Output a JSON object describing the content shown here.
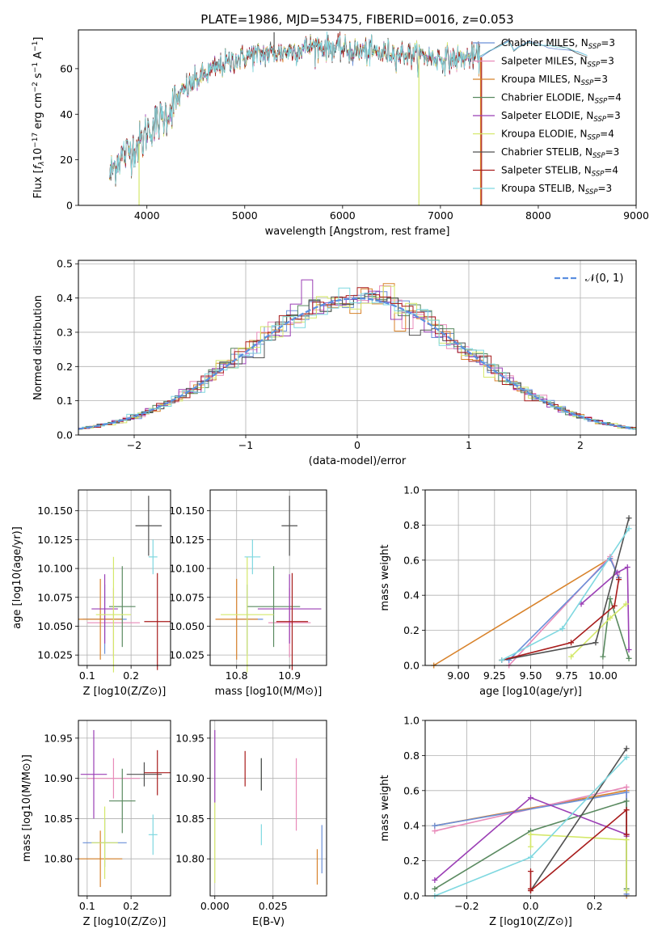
{
  "colors": {
    "Chabrier MILES": "#6a8fd8",
    "Salpeter MILES": "#e88ab9",
    "Kroupa MILES": "#d8822a",
    "Chabrier ELODIE": "#5a8a60",
    "Salpeter ELODIE": "#9b3fb5",
    "Kroupa ELODIE": "#d4e86a",
    "Chabrier STELIB": "#505050",
    "Salpeter STELIB": "#a81c1c",
    "Kroupa STELIB": "#7fd8e0",
    "normal": "#5b8fe0",
    "grid": "#b0b0b0"
  },
  "chart_data": [
    {
      "id": "spectrum",
      "type": "line",
      "title": "PLATE=1986, MJD=53475, FIBERID=0016, z=0.053",
      "xlabel": "wavelength [Angstrom, rest frame]",
      "ylabel": "Flux [f_λ10^-17 erg cm^-2 s^-1 A^-1]",
      "xlim": [
        3300,
        9000
      ],
      "ylim": [
        0,
        77
      ],
      "xticks": [
        4000,
        5000,
        6000,
        7000,
        8000,
        9000
      ],
      "yticks": [
        0,
        20,
        40,
        60
      ],
      "grid": false,
      "legend_position": "top-right",
      "series": [
        {
          "name": "Chabrier MILES",
          "ssp": "3"
        },
        {
          "name": "Salpeter MILES",
          "ssp": "3"
        },
        {
          "name": "Kroupa MILES",
          "ssp": "3"
        },
        {
          "name": "Chabrier ELODIE",
          "ssp": "4"
        },
        {
          "name": "Salpeter ELODIE",
          "ssp": "3"
        },
        {
          "name": "Kroupa ELODIE",
          "ssp": "4"
        },
        {
          "name": "Chabrier STELIB",
          "ssp": "3"
        },
        {
          "name": "Salpeter STELIB",
          "ssp": "4"
        },
        {
          "name": "Kroupa STELIB",
          "ssp": "3"
        }
      ],
      "continuum": {
        "x": [
          3620,
          3700,
          3850,
          3950,
          4000,
          4100,
          4200,
          4300,
          4400,
          4500,
          4700,
          4900,
          5100,
          5300,
          5500,
          5700,
          5900,
          6100,
          6300,
          6500,
          6700,
          6900,
          7100,
          7300,
          7400
        ],
        "y": [
          13,
          20,
          25,
          28,
          33,
          36,
          40,
          46,
          51,
          55,
          60,
          64,
          66,
          67,
          68,
          70,
          69,
          68,
          67,
          67,
          66,
          65,
          64,
          65,
          65
        ]
      },
      "model_tail": {
        "x": [
          7400,
          7500,
          7600,
          7700,
          7750,
          7800,
          7900,
          8000,
          8100,
          8200,
          8300,
          8400,
          8500
        ],
        "y": [
          65,
          68,
          70,
          72,
          68,
          70,
          72,
          71,
          70,
          69,
          69,
          67,
          66
        ]
      },
      "spikes": [
        {
          "series": "Kroupa ELODIE",
          "x": 3920,
          "y": 0
        },
        {
          "series": "Chabrier STELIB",
          "x": 5300,
          "y": 76
        },
        {
          "series": "Kroupa ELODIE",
          "x": 6780,
          "y": 0
        },
        {
          "series": "Salpeter STELIB",
          "x": 7420,
          "y": 0
        },
        {
          "series": "Kroupa MILES",
          "x": 7410,
          "y": 0
        }
      ]
    },
    {
      "id": "residuals",
      "type": "histogram",
      "xlabel": "(data-model)/error",
      "ylabel": "Normed distribution",
      "xlim": [
        -2.5,
        2.5
      ],
      "ylim": [
        0,
        0.51
      ],
      "xticks": [
        -2,
        -1,
        0,
        1,
        2
      ],
      "yticks": [
        0.0,
        0.1,
        0.2,
        0.3,
        0.4,
        0.5
      ],
      "grid": true,
      "legend_position": "top-right",
      "legend": "𝒩(0, 1)",
      "bin_width": 0.1
    },
    {
      "id": "age-vs-Z",
      "type": "scatter",
      "xlabel": "Z [log10(Z/Z⊙)]",
      "ylabel": "age  [log10(age/yr)]",
      "xlim": [
        0.08,
        0.29
      ],
      "ylim": [
        10.016,
        10.168
      ],
      "xticks": [
        0.1,
        0.2
      ],
      "yticks": [
        10.025,
        10.05,
        10.075,
        10.1,
        10.125,
        10.15
      ],
      "grid": true,
      "points": [
        {
          "series": "Chabrier MILES",
          "x": 0.14,
          "y": 10.056,
          "xerr": 0.05,
          "yerr": 0.03
        },
        {
          "series": "Salpeter MILES",
          "x": 0.16,
          "y": 10.053,
          "xerr": 0.06,
          "yerr": 0.03
        },
        {
          "series": "Kroupa MILES",
          "x": 0.13,
          "y": 10.056,
          "xerr": 0.05,
          "yerr": 0.035
        },
        {
          "series": "Chabrier ELODIE",
          "x": 0.18,
          "y": 10.067,
          "xerr": 0.03,
          "yerr": 0.035
        },
        {
          "series": "Salpeter ELODIE",
          "x": 0.14,
          "y": 10.065,
          "xerr": 0.03,
          "yerr": 0.03
        },
        {
          "series": "Kroupa ELODIE",
          "x": 0.16,
          "y": 10.06,
          "xerr": 0.04,
          "yerr": 0.05
        },
        {
          "series": "Chabrier STELIB",
          "x": 0.24,
          "y": 10.137,
          "xerr": 0.03,
          "yerr": 0.026
        },
        {
          "series": "Salpeter STELIB",
          "x": 0.26,
          "y": 10.054,
          "xerr": 0.03,
          "yerr": 0.042
        },
        {
          "series": "Kroupa STELIB",
          "x": 0.25,
          "y": 10.11,
          "xerr": 0.01,
          "yerr": 0.015
        }
      ]
    },
    {
      "id": "age-vs-mass",
      "type": "scatter",
      "xlabel": "mass [log10(M/M⊙)]",
      "ylabel": "",
      "xlim": [
        10.75,
        10.97
      ],
      "ylim": [
        10.016,
        10.168
      ],
      "xticks": [
        10.8,
        10.9
      ],
      "yticks": [
        10.025,
        10.05,
        10.075,
        10.1,
        10.125,
        10.15
      ],
      "grid": true,
      "points": [
        {
          "series": "Chabrier MILES",
          "x": 10.82,
          "y": 10.056,
          "xerr": 0.03,
          "yerr": 0.03
        },
        {
          "series": "Salpeter MILES",
          "x": 10.9,
          "y": 10.053,
          "xerr": 0.04,
          "yerr": 0.03
        },
        {
          "series": "Kroupa MILES",
          "x": 10.8,
          "y": 10.056,
          "xerr": 0.04,
          "yerr": 0.035
        },
        {
          "series": "Chabrier ELODIE",
          "x": 10.87,
          "y": 10.067,
          "xerr": 0.05,
          "yerr": 0.035
        },
        {
          "series": "Salpeter ELODIE",
          "x": 10.9,
          "y": 10.065,
          "xerr": 0.06,
          "yerr": 0.03
        },
        {
          "series": "Kroupa ELODIE",
          "x": 10.82,
          "y": 10.06,
          "xerr": 0.05,
          "yerr": 0.05
        },
        {
          "series": "Chabrier STELIB",
          "x": 10.9,
          "y": 10.137,
          "xerr": 0.015,
          "yerr": 0.026
        },
        {
          "series": "Salpeter STELIB",
          "x": 10.905,
          "y": 10.054,
          "xerr": 0.03,
          "yerr": 0.042
        },
        {
          "series": "Kroupa STELIB",
          "x": 10.83,
          "y": 10.11,
          "xerr": 0.015,
          "yerr": 0.015
        }
      ]
    },
    {
      "id": "weight-vs-age",
      "type": "line",
      "xlabel": "age  [log10(age/yr)]",
      "ylabel": "mass weight",
      "xlim": [
        8.77,
        10.23
      ],
      "ylim": [
        0,
        1
      ],
      "xticks": [
        9.0,
        9.25,
        9.5,
        9.75,
        10.0
      ],
      "yticks": [
        0.0,
        0.2,
        0.4,
        0.6,
        0.8,
        1.0
      ],
      "grid": true,
      "series": [
        {
          "name": "Kroupa MILES",
          "x": [
            8.83,
            10.05,
            10.11
          ],
          "y": [
            0.0,
            0.61,
            0.5
          ]
        },
        {
          "name": "Salpeter MILES",
          "x": [
            9.35,
            10.05,
            10.1
          ],
          "y": [
            0.0,
            0.62,
            0.52
          ]
        },
        {
          "name": "Chabrier MILES",
          "x": [
            9.35,
            10.05,
            10.11
          ],
          "y": [
            0.03,
            0.61,
            0.5
          ]
        },
        {
          "name": "Chabrier ELODIE",
          "x": [
            10.0,
            10.05,
            10.18
          ],
          "y": [
            0.05,
            0.38,
            0.04
          ]
        },
        {
          "name": "Salpeter ELODIE",
          "x": [
            9.85,
            10.1,
            10.17,
            10.18
          ],
          "y": [
            0.35,
            0.53,
            0.56,
            0.09
          ]
        },
        {
          "name": "Kroupa ELODIE",
          "x": [
            9.78,
            10.05,
            10.16
          ],
          "y": [
            0.05,
            0.27,
            0.35
          ]
        },
        {
          "name": "Chabrier STELIB",
          "x": [
            9.3,
            9.95,
            10.18
          ],
          "y": [
            0.03,
            0.13,
            0.84
          ]
        },
        {
          "name": "Salpeter STELIB",
          "x": [
            9.3,
            9.78,
            10.08,
            10.11
          ],
          "y": [
            0.03,
            0.13,
            0.34,
            0.49
          ]
        },
        {
          "name": "Kroupa STELIB",
          "x": [
            9.3,
            9.72,
            10.18
          ],
          "y": [
            0.03,
            0.21,
            0.78
          ]
        }
      ]
    },
    {
      "id": "mass-vs-Z",
      "type": "scatter",
      "xlabel": "Z [log10(Z/Z⊙)]",
      "ylabel": "mass [log10(M/M⊙)]",
      "xlim": [
        0.08,
        0.29
      ],
      "ylim": [
        10.754,
        10.972
      ],
      "xticks": [
        0.1,
        0.2
      ],
      "yticks": [
        10.8,
        10.85,
        10.9,
        10.95
      ],
      "grid": true,
      "points": [
        {
          "series": "Chabrier MILES",
          "x": 0.14,
          "y": 10.82,
          "xerr": 0.05,
          "yerr": 0.03
        },
        {
          "series": "Salpeter MILES",
          "x": 0.16,
          "y": 10.9,
          "xerr": 0.06,
          "yerr": 0.025
        },
        {
          "series": "Kroupa MILES",
          "x": 0.13,
          "y": 10.8,
          "xerr": 0.05,
          "yerr": 0.035
        },
        {
          "series": "Chabrier ELODIE",
          "x": 0.18,
          "y": 10.872,
          "xerr": 0.03,
          "yerr": 0.04
        },
        {
          "series": "Salpeter ELODIE",
          "x": 0.115,
          "y": 10.905,
          "xerr": 0.03,
          "yerr": 0.055
        },
        {
          "series": "Kroupa ELODIE",
          "x": 0.14,
          "y": 10.82,
          "xerr": 0.03,
          "yerr": 0.045
        },
        {
          "series": "Chabrier STELIB",
          "x": 0.23,
          "y": 10.905,
          "xerr": 0.04,
          "yerr": 0.015
        },
        {
          "series": "Salpeter STELIB",
          "x": 0.26,
          "y": 10.907,
          "xerr": 0.03,
          "yerr": 0.028
        },
        {
          "series": "Kroupa STELIB",
          "x": 0.25,
          "y": 10.83,
          "xerr": 0.01,
          "yerr": 0.025
        }
      ]
    },
    {
      "id": "mass-vs-ebv",
      "type": "scatter",
      "xlabel": "E(B-V)",
      "ylabel": "",
      "xlim": [
        -0.002,
        0.048
      ],
      "ylim": [
        10.754,
        10.972
      ],
      "xticks": [
        0.0,
        0.025
      ],
      "yticks": [
        10.8,
        10.85,
        10.9,
        10.95
      ],
      "grid": true,
      "points": [
        {
          "series": "Chabrier MILES",
          "x": 0.046,
          "y": 10.812,
          "xerr": 0,
          "yerr": 0.03
        },
        {
          "series": "Salpeter MILES",
          "x": 0.035,
          "y": 10.88,
          "xerr": 0,
          "yerr": 0.045
        },
        {
          "series": "Kroupa MILES",
          "x": 0.044,
          "y": 10.79,
          "xerr": 0,
          "yerr": 0.022
        },
        {
          "series": "Chabrier ELODIE",
          "x": 0.02,
          "y": 10.905,
          "xerr": 0,
          "yerr": 0.02
        },
        {
          "series": "Salpeter ELODIE",
          "x": 0.0,
          "y": 10.915,
          "xerr": 0,
          "yerr": 0.045
        },
        {
          "series": "Kroupa ELODIE",
          "x": 0.0,
          "y": 10.82,
          "xerr": 0,
          "yerr": 0.05
        },
        {
          "series": "Chabrier STELIB",
          "x": 0.02,
          "y": 10.905,
          "xerr": 0,
          "yerr": 0.02
        },
        {
          "series": "Salpeter STELIB",
          "x": 0.013,
          "y": 10.912,
          "xerr": 0,
          "yerr": 0.022
        },
        {
          "series": "Kroupa STELIB",
          "x": 0.02,
          "y": 10.83,
          "xerr": 0,
          "yerr": 0.013
        }
      ]
    },
    {
      "id": "weight-vs-Z",
      "type": "line",
      "xlabel": "Z [log10(Z/Z⊙)]",
      "ylabel": "mass weight",
      "xlim": [
        -0.33,
        0.33
      ],
      "ylim": [
        0,
        1
      ],
      "xticks": [
        -0.2,
        0.0,
        0.2
      ],
      "yticks": [
        0.0,
        0.2,
        0.4,
        0.6,
        0.8,
        1.0
      ],
      "grid": true,
      "series": [
        {
          "name": "Kroupa MILES",
          "x": [
            -0.3,
            0.3,
            0.3
          ],
          "y": [
            0.4,
            0.6,
            0.0
          ]
        },
        {
          "name": "Salpeter MILES",
          "x": [
            -0.3,
            0.3,
            0.3
          ],
          "y": [
            0.37,
            0.62,
            0.01
          ]
        },
        {
          "name": "Chabrier MILES",
          "x": [
            -0.3,
            0.3,
            0.3
          ],
          "y": [
            0.4,
            0.59,
            0.01
          ]
        },
        {
          "name": "Chabrier ELODIE",
          "x": [
            -0.3,
            0.0,
            0.3,
            0.3
          ],
          "y": [
            0.04,
            0.37,
            0.54,
            0.04
          ]
        },
        {
          "name": "Salpeter ELODIE",
          "x": [
            -0.3,
            0.0,
            0.3,
            0.3
          ],
          "y": [
            0.09,
            0.56,
            0.35,
            0.34
          ]
        },
        {
          "name": "Kroupa ELODIE",
          "x": [
            0.0,
            0.0,
            0.3,
            0.3
          ],
          "y": [
            0.28,
            0.35,
            0.32,
            0.03
          ]
        },
        {
          "name": "Chabrier STELIB",
          "x": [
            0.0,
            0.3
          ],
          "y": [
            0.03,
            0.84
          ]
        },
        {
          "name": "Salpeter STELIB",
          "x": [
            0.0,
            0.0,
            0.0,
            0.3,
            0.3
          ],
          "y": [
            0.14,
            0.04,
            0.03,
            0.49,
            0.35
          ]
        },
        {
          "name": "Kroupa STELIB",
          "x": [
            -0.3,
            0.0,
            0.3
          ],
          "y": [
            0.0,
            0.22,
            0.79
          ]
        }
      ]
    }
  ]
}
